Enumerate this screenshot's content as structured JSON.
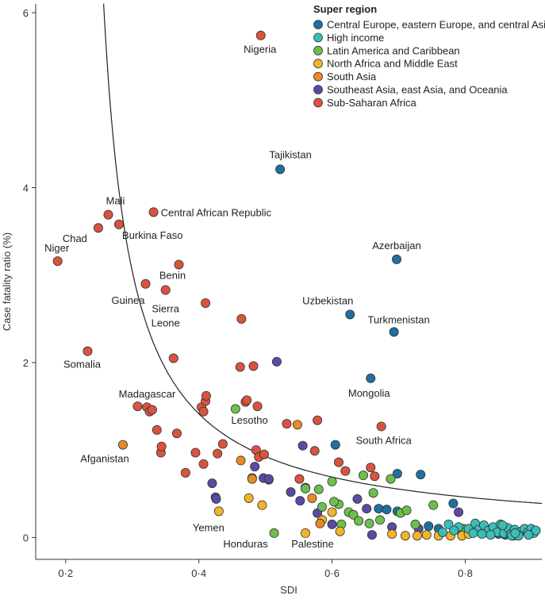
{
  "chart_data": {
    "type": "scatter",
    "xlabel": "SDI",
    "ylabel": "Case fatality ratio (%)",
    "xlim": [
      0.155,
      0.915
    ],
    "ylim": [
      -0.25,
      6.1
    ],
    "x_ticks": [
      {
        "value": 0.2,
        "label": "0·2"
      },
      {
        "value": 0.4,
        "label": "0·4"
      },
      {
        "value": 0.6,
        "label": "0·6"
      },
      {
        "value": 0.8,
        "label": "0·8"
      }
    ],
    "y_ticks": [
      {
        "value": 0,
        "label": "0"
      },
      {
        "value": 2,
        "label": "2"
      },
      {
        "value": 4,
        "label": "4"
      },
      {
        "value": 6,
        "label": "6"
      }
    ],
    "legend": {
      "title": "Super region",
      "position": "top-right",
      "entries": [
        {
          "key": "ceeca",
          "name": "Central Europe, eastern Europe, and central Asia",
          "color": "#1f6fa0"
        },
        {
          "key": "hi",
          "name": "High income",
          "color": "#3bbdb8"
        },
        {
          "key": "lac",
          "name": "Latin America and Caribbean",
          "color": "#6cc04a"
        },
        {
          "key": "nam",
          "name": "North Africa and Middle East",
          "color": "#f2b52a"
        },
        {
          "key": "sa",
          "name": "South Asia",
          "color": "#e88a26"
        },
        {
          "key": "seao",
          "name": "Southeast Asia, east Asia, and Oceania",
          "color": "#5b4aa3"
        },
        {
          "key": "ssa",
          "name": "Sub-Saharan Africa",
          "color": "#d9533f"
        }
      ]
    },
    "fit_curve": {
      "a": 0.2585,
      "b": 0.2145,
      "c": 0.0206
    },
    "labeled_points": [
      {
        "label": "Nigeria",
        "x": 0.493,
        "y": 5.74,
        "group": "ssa"
      },
      {
        "label": "Tajikistan",
        "x": 0.522,
        "y": 4.21,
        "group": "ceeca"
      },
      {
        "label": "Mali",
        "x": 0.264,
        "y": 3.69,
        "group": "ssa"
      },
      {
        "label": "Central African Republic",
        "x": 0.332,
        "y": 3.72,
        "group": "ssa"
      },
      {
        "label": "Chad",
        "x": 0.249,
        "y": 3.54,
        "group": "ssa"
      },
      {
        "label": "Burkina Faso",
        "x": 0.28,
        "y": 3.58,
        "group": "ssa"
      },
      {
        "label": "Niger",
        "x": 0.188,
        "y": 3.16,
        "group": "ssa"
      },
      {
        "label": "Benin",
        "x": 0.37,
        "y": 3.12,
        "group": "ssa"
      },
      {
        "label": "Azerbaijan",
        "x": 0.697,
        "y": 3.18,
        "group": "ceeca"
      },
      {
        "label": "Guinea",
        "x": 0.32,
        "y": 2.9,
        "group": "ssa"
      },
      {
        "label": "Sierra Leone",
        "x": 0.35,
        "y": 2.83,
        "group": "ssa"
      },
      {
        "label": "Uzbekistan",
        "x": 0.627,
        "y": 2.55,
        "group": "ceeca"
      },
      {
        "label": "Turkmenistan",
        "x": 0.693,
        "y": 2.35,
        "group": "ceeca"
      },
      {
        "label": "Somalia",
        "x": 0.233,
        "y": 2.13,
        "group": "ssa"
      },
      {
        "label": "Mongolia",
        "x": 0.658,
        "y": 1.82,
        "group": "ceeca"
      },
      {
        "label": "Madagascar",
        "x": 0.308,
        "y": 1.5,
        "group": "ssa"
      },
      {
        "label": "Lesotho",
        "x": 0.488,
        "y": 1.5,
        "group": "ssa"
      },
      {
        "label": "South Africa",
        "x": 0.674,
        "y": 1.27,
        "group": "ssa"
      },
      {
        "label": "Afganistan",
        "x": 0.286,
        "y": 1.06,
        "group": "sa"
      },
      {
        "label": "Yemen",
        "x": 0.43,
        "y": 0.3,
        "group": "nam"
      },
      {
        "label": "Honduras",
        "x": 0.513,
        "y": 0.05,
        "group": "lac"
      },
      {
        "label": "Palestine",
        "x": 0.56,
        "y": 0.05,
        "group": "nam"
      }
    ],
    "points": [
      {
        "x": 0.322,
        "y": 1.49,
        "group": "ssa"
      },
      {
        "x": 0.326,
        "y": 1.44,
        "group": "ssa"
      },
      {
        "x": 0.33,
        "y": 1.46,
        "group": "ssa"
      },
      {
        "x": 0.337,
        "y": 1.23,
        "group": "ssa"
      },
      {
        "x": 0.343,
        "y": 0.97,
        "group": "ssa"
      },
      {
        "x": 0.344,
        "y": 1.04,
        "group": "ssa"
      },
      {
        "x": 0.362,
        "y": 2.05,
        "group": "ssa"
      },
      {
        "x": 0.367,
        "y": 1.19,
        "group": "ssa"
      },
      {
        "x": 0.38,
        "y": 0.74,
        "group": "ssa"
      },
      {
        "x": 0.404,
        "y": 1.49,
        "group": "ssa"
      },
      {
        "x": 0.407,
        "y": 1.44,
        "group": "ssa"
      },
      {
        "x": 0.41,
        "y": 1.56,
        "group": "ssa"
      },
      {
        "x": 0.411,
        "y": 1.62,
        "group": "ssa"
      },
      {
        "x": 0.41,
        "y": 2.68,
        "group": "ssa"
      },
      {
        "x": 0.395,
        "y": 0.97,
        "group": "ssa"
      },
      {
        "x": 0.407,
        "y": 0.84,
        "group": "ssa"
      },
      {
        "x": 0.428,
        "y": 0.96,
        "group": "ssa"
      },
      {
        "x": 0.436,
        "y": 1.07,
        "group": "ssa"
      },
      {
        "x": 0.462,
        "y": 1.95,
        "group": "ssa"
      },
      {
        "x": 0.464,
        "y": 2.5,
        "group": "ssa"
      },
      {
        "x": 0.47,
        "y": 1.55,
        "group": "ssa"
      },
      {
        "x": 0.472,
        "y": 1.57,
        "group": "ssa"
      },
      {
        "x": 0.482,
        "y": 1.96,
        "group": "ssa"
      },
      {
        "x": 0.486,
        "y": 1.0,
        "group": "ssa"
      },
      {
        "x": 0.49,
        "y": 0.92,
        "group": "ssa"
      },
      {
        "x": 0.498,
        "y": 0.95,
        "group": "ssa"
      },
      {
        "x": 0.532,
        "y": 1.3,
        "group": "ssa"
      },
      {
        "x": 0.574,
        "y": 0.99,
        "group": "ssa"
      },
      {
        "x": 0.578,
        "y": 1.34,
        "group": "ssa"
      },
      {
        "x": 0.61,
        "y": 0.86,
        "group": "ssa"
      },
      {
        "x": 0.62,
        "y": 0.76,
        "group": "ssa"
      },
      {
        "x": 0.658,
        "y": 0.8,
        "group": "ssa"
      },
      {
        "x": 0.664,
        "y": 0.7,
        "group": "ssa"
      },
      {
        "x": 0.505,
        "y": 0.66,
        "group": "ssa"
      },
      {
        "x": 0.551,
        "y": 0.67,
        "group": "ssa"
      },
      {
        "x": 0.517,
        "y": 2.01,
        "group": "seao"
      },
      {
        "x": 0.42,
        "y": 0.62,
        "group": "seao"
      },
      {
        "x": 0.425,
        "y": 0.46,
        "group": "seao"
      },
      {
        "x": 0.426,
        "y": 0.44,
        "group": "seao"
      },
      {
        "x": 0.48,
        "y": 0.68,
        "group": "seao"
      },
      {
        "x": 0.484,
        "y": 0.81,
        "group": "seao"
      },
      {
        "x": 0.497,
        "y": 0.68,
        "group": "seao"
      },
      {
        "x": 0.505,
        "y": 0.67,
        "group": "seao"
      },
      {
        "x": 0.538,
        "y": 0.52,
        "group": "seao"
      },
      {
        "x": 0.556,
        "y": 1.05,
        "group": "seao"
      },
      {
        "x": 0.56,
        "y": 0.57,
        "group": "seao"
      },
      {
        "x": 0.578,
        "y": 0.28,
        "group": "seao"
      },
      {
        "x": 0.6,
        "y": 0.15,
        "group": "seao"
      },
      {
        "x": 0.638,
        "y": 0.44,
        "group": "seao"
      },
      {
        "x": 0.652,
        "y": 0.33,
        "group": "seao"
      },
      {
        "x": 0.66,
        "y": 0.03,
        "group": "seao"
      },
      {
        "x": 0.73,
        "y": 0.1,
        "group": "seao"
      },
      {
        "x": 0.79,
        "y": 0.29,
        "group": "seao"
      },
      {
        "x": 0.552,
        "y": 0.42,
        "group": "seao"
      },
      {
        "x": 0.69,
        "y": 0.12,
        "group": "seao"
      },
      {
        "x": 0.605,
        "y": 1.06,
        "group": "ceeca"
      },
      {
        "x": 0.698,
        "y": 0.73,
        "group": "ceeca"
      },
      {
        "x": 0.733,
        "y": 0.72,
        "group": "ceeca"
      },
      {
        "x": 0.67,
        "y": 0.33,
        "group": "ceeca"
      },
      {
        "x": 0.682,
        "y": 0.32,
        "group": "ceeca"
      },
      {
        "x": 0.698,
        "y": 0.3,
        "group": "ceeca"
      },
      {
        "x": 0.782,
        "y": 0.39,
        "group": "ceeca"
      },
      {
        "x": 0.745,
        "y": 0.13,
        "group": "ceeca"
      },
      {
        "x": 0.76,
        "y": 0.1,
        "group": "ceeca"
      },
      {
        "x": 0.83,
        "y": 0.06,
        "group": "ceeca"
      },
      {
        "x": 0.85,
        "y": 0.04,
        "group": "ceeca"
      },
      {
        "x": 0.86,
        "y": 0.03,
        "group": "ceeca"
      },
      {
        "x": 0.872,
        "y": 0.02,
        "group": "ceeca"
      },
      {
        "x": 0.795,
        "y": 0.05,
        "group": "ceeca"
      },
      {
        "x": 0.455,
        "y": 1.47,
        "group": "lac"
      },
      {
        "x": 0.56,
        "y": 0.56,
        "group": "lac"
      },
      {
        "x": 0.58,
        "y": 0.55,
        "group": "lac"
      },
      {
        "x": 0.585,
        "y": 0.35,
        "group": "lac"
      },
      {
        "x": 0.6,
        "y": 0.64,
        "group": "lac"
      },
      {
        "x": 0.61,
        "y": 0.38,
        "group": "lac"
      },
      {
        "x": 0.625,
        "y": 0.29,
        "group": "lac"
      },
      {
        "x": 0.632,
        "y": 0.26,
        "group": "lac"
      },
      {
        "x": 0.64,
        "y": 0.19,
        "group": "lac"
      },
      {
        "x": 0.647,
        "y": 0.71,
        "group": "lac"
      },
      {
        "x": 0.662,
        "y": 0.51,
        "group": "lac"
      },
      {
        "x": 0.672,
        "y": 0.2,
        "group": "lac"
      },
      {
        "x": 0.688,
        "y": 0.67,
        "group": "lac"
      },
      {
        "x": 0.703,
        "y": 0.28,
        "group": "lac"
      },
      {
        "x": 0.712,
        "y": 0.31,
        "group": "lac"
      },
      {
        "x": 0.725,
        "y": 0.15,
        "group": "lac"
      },
      {
        "x": 0.752,
        "y": 0.37,
        "group": "lac"
      },
      {
        "x": 0.797,
        "y": 0.1,
        "group": "lac"
      },
      {
        "x": 0.614,
        "y": 0.15,
        "group": "lac"
      },
      {
        "x": 0.656,
        "y": 0.16,
        "group": "lac"
      },
      {
        "x": 0.603,
        "y": 0.41,
        "group": "lac"
      },
      {
        "x": 0.475,
        "y": 0.45,
        "group": "nam"
      },
      {
        "x": 0.495,
        "y": 0.37,
        "group": "nam"
      },
      {
        "x": 0.585,
        "y": 0.2,
        "group": "nam"
      },
      {
        "x": 0.612,
        "y": 0.07,
        "group": "nam"
      },
      {
        "x": 0.69,
        "y": 0.04,
        "group": "nam"
      },
      {
        "x": 0.71,
        "y": 0.02,
        "group": "nam"
      },
      {
        "x": 0.728,
        "y": 0.02,
        "group": "nam"
      },
      {
        "x": 0.742,
        "y": 0.03,
        "group": "nam"
      },
      {
        "x": 0.76,
        "y": 0.02,
        "group": "nam"
      },
      {
        "x": 0.778,
        "y": 0.02,
        "group": "nam"
      },
      {
        "x": 0.795,
        "y": 0.02,
        "group": "nam"
      },
      {
        "x": 0.805,
        "y": 0.04,
        "group": "nam"
      },
      {
        "x": 0.6,
        "y": 0.29,
        "group": "nam"
      },
      {
        "x": 0.463,
        "y": 0.88,
        "group": "sa"
      },
      {
        "x": 0.548,
        "y": 1.29,
        "group": "sa"
      },
      {
        "x": 0.57,
        "y": 0.45,
        "group": "sa"
      },
      {
        "x": 0.582,
        "y": 0.16,
        "group": "sa"
      },
      {
        "x": 0.48,
        "y": 0.67,
        "group": "sa"
      },
      {
        "x": 0.775,
        "y": 0.15,
        "group": "hi"
      },
      {
        "x": 0.79,
        "y": 0.12,
        "group": "hi"
      },
      {
        "x": 0.805,
        "y": 0.1,
        "group": "hi"
      },
      {
        "x": 0.815,
        "y": 0.16,
        "group": "hi"
      },
      {
        "x": 0.82,
        "y": 0.09,
        "group": "hi"
      },
      {
        "x": 0.828,
        "y": 0.14,
        "group": "hi"
      },
      {
        "x": 0.835,
        "y": 0.08,
        "group": "hi"
      },
      {
        "x": 0.842,
        "y": 0.12,
        "group": "hi"
      },
      {
        "x": 0.848,
        "y": 0.06,
        "group": "hi"
      },
      {
        "x": 0.853,
        "y": 0.15,
        "group": "hi"
      },
      {
        "x": 0.858,
        "y": 0.05,
        "group": "hi"
      },
      {
        "x": 0.864,
        "y": 0.11,
        "group": "hi"
      },
      {
        "x": 0.868,
        "y": 0.04,
        "group": "hi"
      },
      {
        "x": 0.874,
        "y": 0.09,
        "group": "hi"
      },
      {
        "x": 0.879,
        "y": 0.03,
        "group": "hi"
      },
      {
        "x": 0.884,
        "y": 0.07,
        "group": "hi"
      },
      {
        "x": 0.889,
        "y": 0.1,
        "group": "hi"
      },
      {
        "x": 0.894,
        "y": 0.06,
        "group": "hi"
      },
      {
        "x": 0.899,
        "y": 0.1,
        "group": "hi"
      },
      {
        "x": 0.903,
        "y": 0.05,
        "group": "hi"
      },
      {
        "x": 0.906,
        "y": 0.08,
        "group": "hi"
      },
      {
        "x": 0.87,
        "y": 0.02,
        "group": "hi"
      },
      {
        "x": 0.88,
        "y": 0.02,
        "group": "hi"
      },
      {
        "x": 0.895,
        "y": 0.03,
        "group": "hi"
      },
      {
        "x": 0.838,
        "y": 0.03,
        "group": "hi"
      },
      {
        "x": 0.812,
        "y": 0.05,
        "group": "hi"
      },
      {
        "x": 0.825,
        "y": 0.04,
        "group": "hi"
      },
      {
        "x": 0.766,
        "y": 0.06,
        "group": "hi"
      },
      {
        "x": 0.783,
        "y": 0.08,
        "group": "hi"
      },
      {
        "x": 0.856,
        "y": 0.14,
        "group": "hi"
      },
      {
        "x": 0.875,
        "y": 0.05,
        "group": "hi"
      }
    ]
  }
}
